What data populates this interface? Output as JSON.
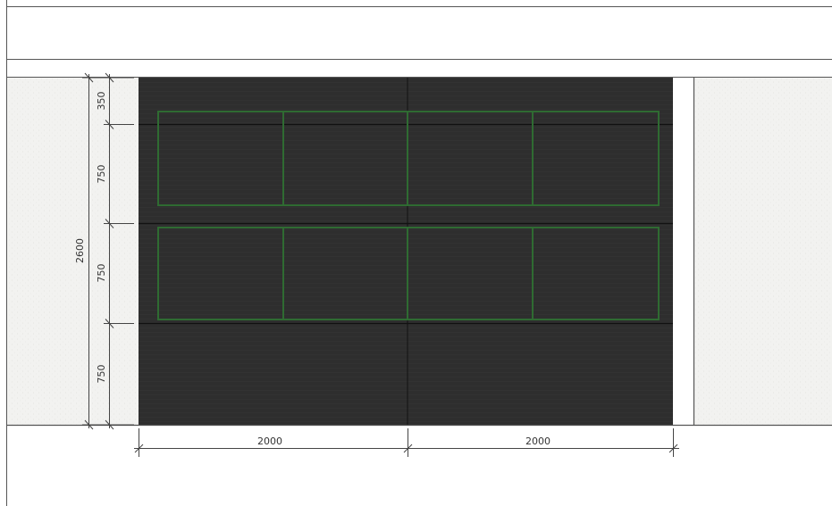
{
  "colors": {
    "background": "#ffffff",
    "outline": "#555555",
    "wall_texture": "#f2f2f0",
    "door_panel": "#2e2e2e",
    "panel_joint": "#111111",
    "window_frame": "#2f6b32",
    "dimension_line": "#444444"
  },
  "dimensions": {
    "vertical_total": "2600",
    "vertical_segments": [
      "350",
      "750",
      "750",
      "750"
    ],
    "horizontal_segments": [
      "2000",
      "2000"
    ]
  },
  "door": {
    "window_rows": 2,
    "window_columns": 4
  }
}
